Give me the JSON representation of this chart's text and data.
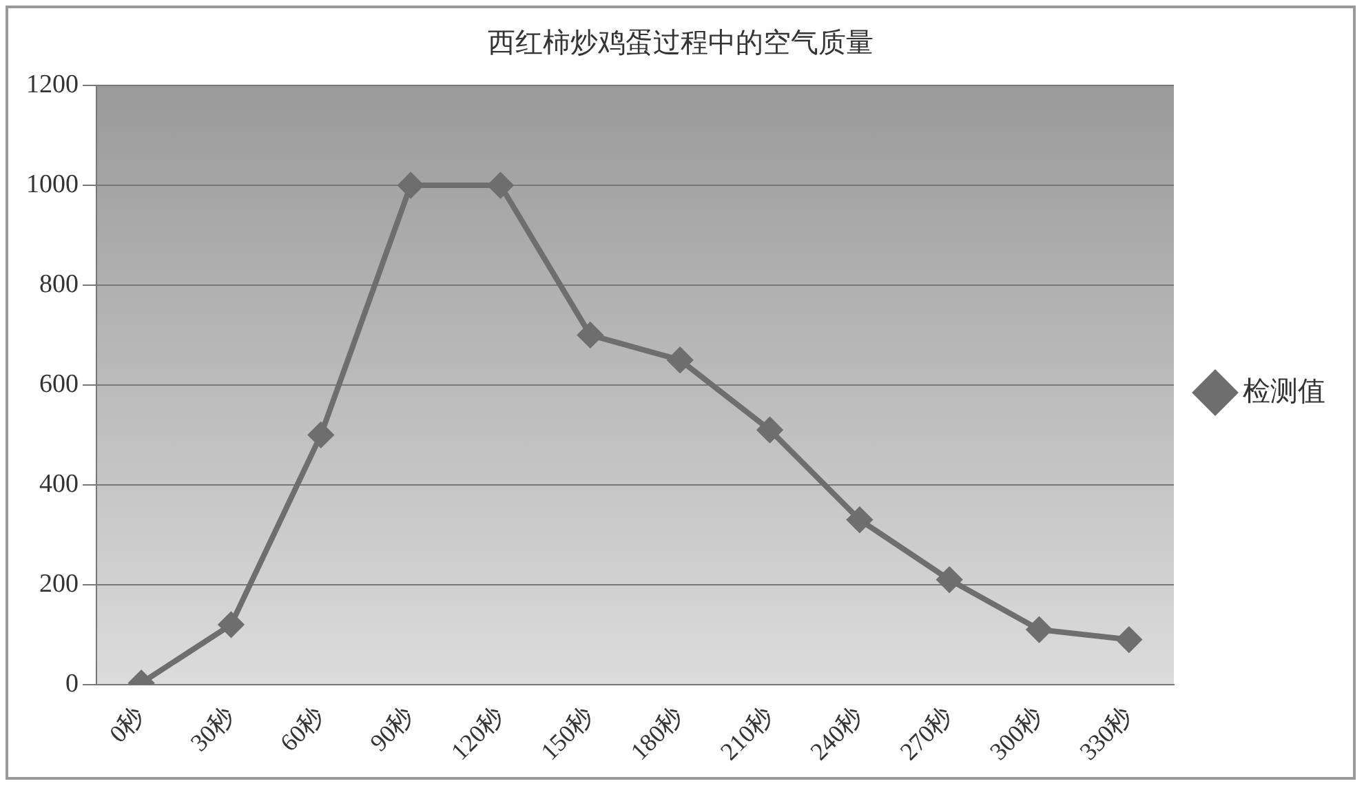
{
  "chart_data": {
    "type": "line",
    "title": "西红柿炒鸡蛋过程中的空气质量",
    "categories": [
      "0秒",
      "30秒",
      "60秒",
      "90秒",
      "120秒",
      "150秒",
      "180秒",
      "210秒",
      "240秒",
      "270秒",
      "300秒",
      "330秒"
    ],
    "series": [
      {
        "name": "检测值",
        "color": "#6e6e6e",
        "values": [
          3,
          120,
          500,
          1000,
          1000,
          700,
          650,
          510,
          330,
          210,
          110,
          90
        ]
      }
    ],
    "ylim": [
      0,
      1200
    ],
    "yticks": [
      0,
      200,
      400,
      600,
      800,
      1000,
      1200
    ],
    "grid": "y",
    "legend": "right",
    "marker": "diamond",
    "line_style": "solid"
  }
}
